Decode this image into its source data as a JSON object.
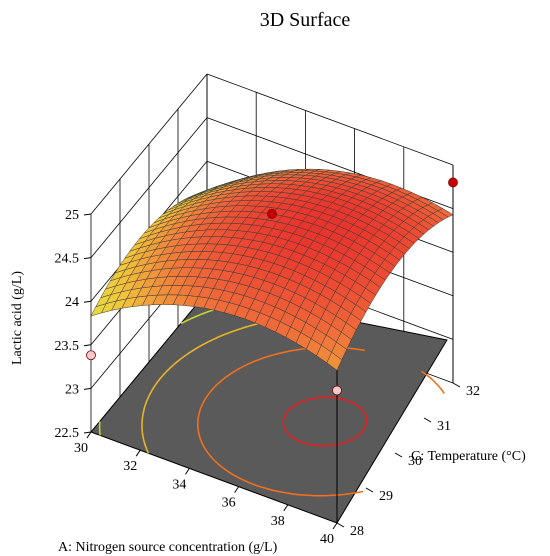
{
  "chart_data": {
    "type": "surface",
    "title": "3D Surface",
    "xlabel": "A: Nitrogen source concentration (g/L)",
    "ylabel": "C: Temperature (°C)",
    "zlabel": "Lactic acid (g/L)",
    "x_ticks": [
      "30",
      "32",
      "34",
      "36",
      "38",
      "40"
    ],
    "y_ticks": [
      "28",
      "29",
      "30",
      "31",
      "32"
    ],
    "z_ticks": [
      "22.5",
      "23",
      "23.5",
      "24",
      "24.5",
      "25"
    ],
    "xlim": [
      30,
      40
    ],
    "ylim": [
      28,
      32
    ],
    "zlim": [
      22.5,
      25
    ],
    "colormap": [
      "#6fe05a",
      "#dcef45",
      "#f2c23a",
      "#ef6a3a",
      "#e8282a"
    ],
    "floor_color": "#5a5a5a",
    "contour_levels": [
      23.6,
      23.9,
      24.2,
      24.5,
      24.75
    ],
    "contour_colors": [
      "#46c84a",
      "#c8d232",
      "#e8b42a",
      "#ee7020",
      "#e32020"
    ],
    "design_points": [
      {
        "x": 30,
        "y": 28,
        "z": 23.38
      },
      {
        "x": 35,
        "y": 30,
        "z": 24.72
      },
      {
        "x": 40,
        "y": 32,
        "z": 24.8
      },
      {
        "x": 40,
        "y": 28,
        "z": 24.02
      }
    ]
  }
}
